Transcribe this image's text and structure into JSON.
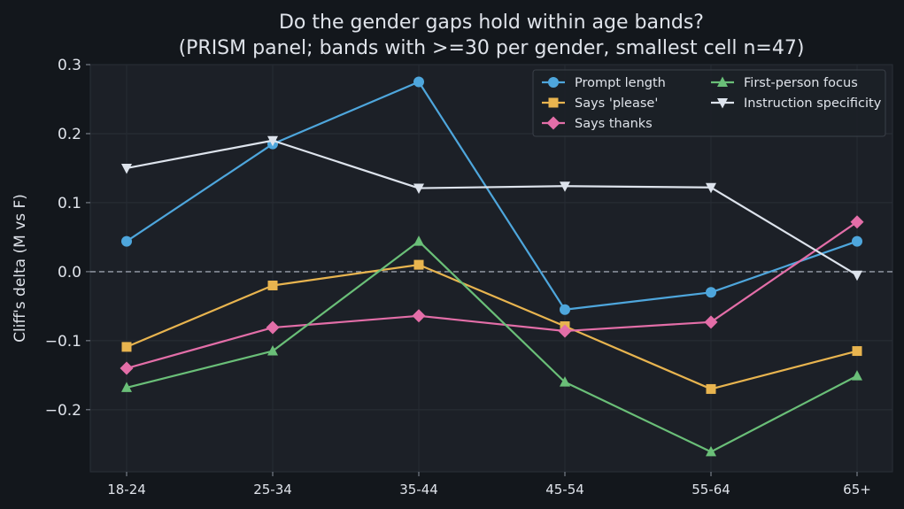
{
  "chart_data": {
    "type": "line",
    "title": "Do the gender gaps hold within age bands?",
    "subtitle": "(PRISM panel; bands with >=30 per gender, smallest cell n=47)",
    "xlabel": "",
    "ylabel": "Cliff's delta (M vs F)",
    "categories": [
      "18-24",
      "25-34",
      "35-44",
      "45-54",
      "55-64",
      "65+"
    ],
    "ylim": [
      -0.29,
      0.3
    ],
    "yticks": [
      0.3,
      0.2,
      0.1,
      0.0,
      -0.1,
      -0.2
    ],
    "ytick_labels": [
      "0.3",
      "0.2",
      "0.1",
      "0.0",
      "−0.1",
      "−0.2"
    ],
    "reference_line": 0.0,
    "grid": true,
    "legend_position": "top-right",
    "series": [
      {
        "name": "Prompt length",
        "color": "#4ea6dc",
        "marker": "circle",
        "values": [
          0.044,
          0.185,
          0.275,
          -0.055,
          -0.03,
          0.044
        ]
      },
      {
        "name": "Says 'please'",
        "color": "#e8b44f",
        "marker": "square",
        "values": [
          -0.109,
          -0.02,
          0.01,
          -0.079,
          -0.17,
          -0.115
        ]
      },
      {
        "name": "Says thanks",
        "color": "#e36ea8",
        "marker": "diamond",
        "values": [
          -0.14,
          -0.081,
          -0.064,
          -0.086,
          -0.073,
          0.072
        ]
      },
      {
        "name": "First-person focus",
        "color": "#6abf78",
        "marker": "triangle-up",
        "values": [
          -0.168,
          -0.115,
          0.044,
          -0.16,
          -0.261,
          -0.151
        ]
      },
      {
        "name": "Instruction specificity",
        "color": "#dde3ec",
        "marker": "triangle-down",
        "values": [
          0.15,
          0.19,
          0.121,
          0.124,
          0.122,
          -0.005
        ]
      }
    ]
  }
}
